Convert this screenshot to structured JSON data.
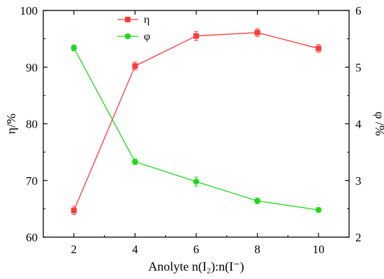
{
  "chart_data": {
    "type": "line",
    "x": [
      2,
      4,
      6,
      8,
      10
    ],
    "xlim": [
      1,
      11
    ],
    "xticks": [
      2,
      4,
      6,
      8,
      10
    ],
    "xlabel": "Anolyte n(I₂):n(I⁻)",
    "y_left": {
      "label": "η/%",
      "lim": [
        60,
        100
      ],
      "ticks": [
        60,
        70,
        80,
        90,
        100
      ]
    },
    "y_right": {
      "label": "φ /%",
      "lim": [
        2,
        6
      ],
      "ticks": [
        2,
        3,
        4,
        5,
        6
      ]
    },
    "legend_position": "top-center",
    "series": [
      {
        "name": "η",
        "axis": "left",
        "color": "#ff3b3b",
        "marker": "square",
        "values": [
          64.7,
          90.2,
          95.5,
          96.1,
          93.3
        ],
        "errors": [
          0.7,
          0.7,
          0.8,
          0.7,
          0.7
        ]
      },
      {
        "name": "φ",
        "axis": "right",
        "color": "#1fd71f",
        "marker": "circle",
        "values": [
          5.34,
          3.33,
          2.98,
          2.64,
          2.48
        ],
        "errors": [
          0.05,
          0.05,
          0.08,
          0.05,
          0.04
        ]
      }
    ]
  }
}
